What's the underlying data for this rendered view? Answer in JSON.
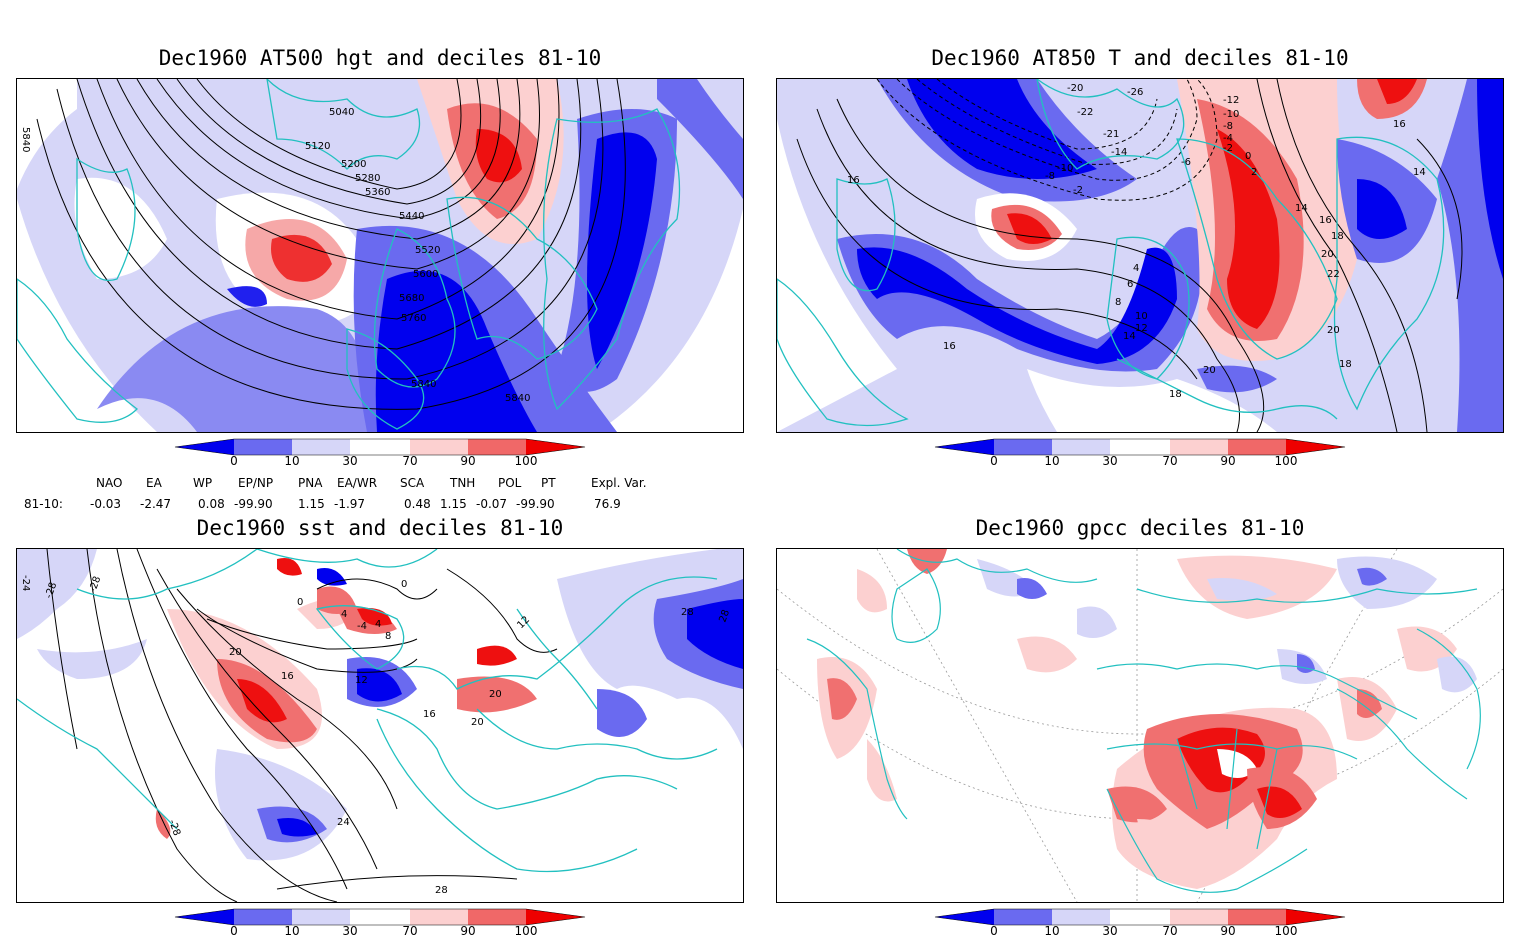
{
  "panels": [
    {
      "title": "Dec1960 AT500 hgt and deciles 81-10",
      "contour_labels": [
        "5040",
        "5120",
        "5200",
        "5280",
        "5360",
        "5440",
        "5520",
        "5600",
        "5680",
        "5760",
        "5840",
        "5840",
        "5840"
      ]
    },
    {
      "title": "Dec1960 AT850 T and deciles 81-10",
      "contour_labels": [
        "-20",
        "-26",
        "-22",
        "-12",
        "-10",
        "-8",
        "-4",
        "-2",
        "0",
        "2",
        "-6",
        "-14",
        "-21",
        "-10",
        "-8",
        "-2",
        "14",
        "16",
        "16",
        "18",
        "20",
        "22",
        "20",
        "20",
        "18",
        "18",
        "14",
        "12",
        "10",
        "8",
        "6",
        "4",
        "16",
        "16",
        "14"
      ]
    },
    {
      "title": "Dec1960 sst and deciles 81-10",
      "contour_labels": [
        "-24",
        "-28",
        "-28",
        "0",
        "0",
        "4",
        "-4",
        "4",
        "8",
        "16",
        "20",
        "12",
        "16",
        "20",
        "20",
        "12",
        "24",
        "28",
        "28",
        "-28",
        "28"
      ]
    },
    {
      "title": "Dec1960 gpcc deciles 81-10",
      "contour_labels": []
    }
  ],
  "colorbar": {
    "ticks": [
      "0",
      "10",
      "30",
      "70",
      "90",
      "100"
    ],
    "colors": [
      "#0000ee",
      "#6a6af0",
      "#d6d6f8",
      "#ffffff",
      "#fcd0d0",
      "#f06868",
      "#ee0000"
    ]
  },
  "indices": {
    "headers": [
      "NAO",
      "EA",
      "WP",
      "EP/NP",
      "PNA",
      "EA/WR",
      "SCA",
      "TNH",
      "POL",
      "PT",
      "Expl. Var."
    ],
    "row_label": "81-10:",
    "values": [
      "-0.03",
      "-2.47",
      "0.08",
      "-99.90",
      "1.15",
      "-1.97",
      "0.48",
      "1.15",
      "-0.07",
      "-99.90",
      "76.9"
    ]
  },
  "colors": {
    "coast": "#22c0c0",
    "contour": "#000000"
  }
}
